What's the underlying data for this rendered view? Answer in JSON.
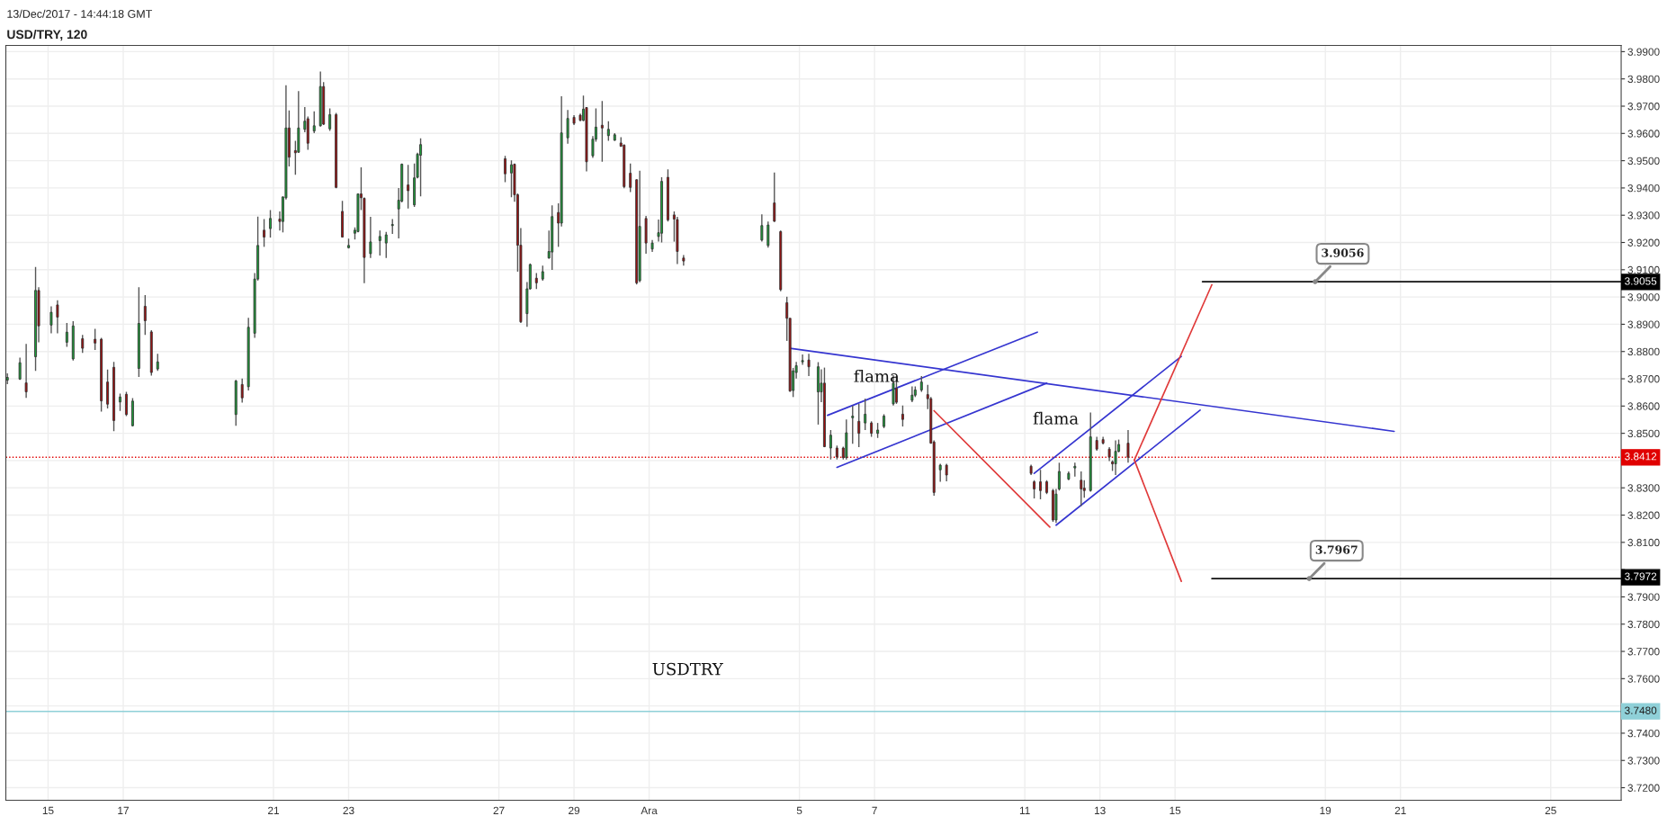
{
  "chart_data": {
    "type": "candlestick",
    "title": "USD/TRY, 120",
    "xlim": [
      "2017-11-13T21:00",
      "2017-12-26T21:00"
    ],
    "ylim": [
      3.7154,
      3.9923
    ],
    "grid": true,
    "xticks": [
      {
        "value": "2017-11-15",
        "label": "15"
      },
      {
        "value": "2017-11-17",
        "label": "17"
      },
      {
        "value": "2017-11-21",
        "label": "21"
      },
      {
        "value": "2017-11-23",
        "label": "23"
      },
      {
        "value": "2017-11-27",
        "label": "27"
      },
      {
        "value": "2017-11-29",
        "label": "29"
      },
      {
        "value": "2017-12-01",
        "label": "Ara"
      },
      {
        "value": "2017-12-05",
        "label": "5"
      },
      {
        "value": "2017-12-07",
        "label": "7"
      },
      {
        "value": "2017-12-11",
        "label": "11"
      },
      {
        "value": "2017-12-13",
        "label": "13"
      },
      {
        "value": "2017-12-15",
        "label": "15"
      },
      {
        "value": "2017-12-19",
        "label": "19"
      },
      {
        "value": "2017-12-21",
        "label": "21"
      },
      {
        "value": "2017-12-25",
        "label": "25"
      }
    ],
    "yticks": [
      {
        "value": 3.72,
        "label": "3.7200"
      },
      {
        "value": 3.73,
        "label": "3.7300"
      },
      {
        "value": 3.74,
        "label": "3.7400"
      },
      {
        "value": 3.75,
        "label": null
      },
      {
        "value": 3.76,
        "label": "3.7600"
      },
      {
        "value": 3.77,
        "label": "3.7700"
      },
      {
        "value": 3.78,
        "label": "3.7800"
      },
      {
        "value": 3.79,
        "label": "3.7900"
      },
      {
        "value": 3.8,
        "label": null
      },
      {
        "value": 3.81,
        "label": "3.8100"
      },
      {
        "value": 3.82,
        "label": "3.8200"
      },
      {
        "value": 3.83,
        "label": "3.8300"
      },
      {
        "value": 3.84,
        "label": null
      },
      {
        "value": 3.85,
        "label": "3.8500"
      },
      {
        "value": 3.86,
        "label": "3.8600"
      },
      {
        "value": 3.87,
        "label": "3.8700"
      },
      {
        "value": 3.88,
        "label": "3.8800"
      },
      {
        "value": 3.89,
        "label": "3.8900"
      },
      {
        "value": 3.9,
        "label": "3.9000"
      },
      {
        "value": 3.91,
        "label": "3.9100"
      },
      {
        "value": 3.92,
        "label": "3.9200"
      },
      {
        "value": 3.93,
        "label": "3.9300"
      },
      {
        "value": 3.94,
        "label": "3.9400"
      },
      {
        "value": 3.95,
        "label": "3.9500"
      },
      {
        "value": 3.96,
        "label": "3.9600"
      },
      {
        "value": 3.97,
        "label": "3.9700"
      },
      {
        "value": 3.98,
        "label": "3.9800"
      },
      {
        "value": 3.99,
        "label": "3.9900"
      }
    ],
    "ref_lines": [
      {
        "axis": "y",
        "value": 3.8412,
        "label": "3.8412",
        "color": "#e00000",
        "line_style": "dotted"
      },
      {
        "axis": "y",
        "value": 3.748,
        "label": "3.7480",
        "color": "#8fd0d8",
        "line_style": "solid"
      }
    ],
    "annotations": [
      "13/Dec/2017 - 14:44:18 GMT",
      "flama",
      "flama",
      "USDTRY",
      {
        "text": "3.9055",
        "x": "2017-12-26T21:00",
        "y": 3.9055
      },
      {
        "text": "3.7972",
        "x": "2017-12-26T21:00",
        "y": 3.7972
      }
    ],
    "series": [
      {
        "type": "line",
        "color": "#3535d0",
        "x": [
          "2017-12-04T18:00",
          "2017-12-20T20:00"
        ],
        "values": [
          3.8812,
          3.8507
        ]
      },
      {
        "type": "line",
        "color": "#3535d0",
        "x": [
          "2017-12-05T18:00",
          "2017-12-11T08:00"
        ],
        "values": [
          3.8566,
          3.8871
        ]
      },
      {
        "type": "line",
        "color": "#3535d0",
        "x": [
          "2017-12-06T00:00",
          "2017-12-11T14:00"
        ],
        "values": [
          3.8375,
          3.8684
        ]
      },
      {
        "type": "line",
        "color": "#3535d0",
        "x": [
          "2017-12-11T06:00",
          "2017-12-15T04:00"
        ],
        "values": [
          3.8353,
          3.8782
        ]
      },
      {
        "type": "line",
        "color": "#3535d0",
        "x": [
          "2017-12-11T20:00",
          "2017-12-15T16:00"
        ],
        "values": [
          3.8163,
          3.8585
        ]
      },
      {
        "type": "line",
        "color": "#e03a3a",
        "x": [
          "2017-12-08T14:00",
          "2017-12-11T16:00"
        ],
        "values": [
          3.8583,
          3.8156
        ]
      },
      {
        "type": "line",
        "color": "#e03a3a",
        "x": [
          "2017-12-13T22:00",
          "2017-12-15T23:30"
        ],
        "values": [
          3.8402,
          3.9045
        ]
      },
      {
        "type": "line",
        "color": "#e03a3a",
        "x": [
          "2017-12-13T22:00",
          "2017-12-15T04:00"
        ],
        "values": [
          3.8402,
          3.7957
        ]
      },
      {
        "type": "line",
        "color": "#111111",
        "x": [
          "2017-12-15T17:30",
          "2017-12-18T17:30",
          "2017-12-26T21:00"
        ],
        "values": [
          3.9056,
          3.9056,
          3.9056
        ],
        "value_labels": [
          null,
          "3.9056",
          null
        ]
      },
      {
        "type": "line",
        "color": "#111111",
        "x": [
          "2017-12-15T23:30",
          "2017-12-18T13:40",
          "2017-12-26T21:00"
        ],
        "values": [
          3.7967,
          3.7967,
          3.7967
        ],
        "value_labels": [
          null,
          "3.7967",
          null
        ]
      },
      {
        "color": "#1e9e3a",
        "x": [
          "2017-11-13T22:00",
          "2017-11-14T06:00",
          "2017-11-14T16:00",
          "2017-11-15T02:00",
          "2017-11-15T12:00",
          "2017-11-15T16:00",
          "2017-11-16T22:00",
          "2017-11-17T06:00",
          "2017-11-17T10:00",
          "2017-11-17T22:00",
          "2017-11-20T00:00",
          "2017-11-20T08:00",
          "2017-11-20T12:00",
          "2017-11-20T14:00",
          "2017-11-20T22:00",
          "2017-11-21T06:00",
          "2017-11-21T08:00",
          "2017-11-21T16:00",
          "2017-11-21T20:00",
          "2017-11-22T02:00",
          "2017-11-22T06:00",
          "2017-11-22T12:00",
          "2017-11-23T00:00",
          "2017-11-23T04:00",
          "2017-11-23T06:00",
          "2017-11-23T14:00",
          "2017-11-23T20:00",
          "2017-11-24T00:00",
          "2017-11-24T04:00",
          "2017-11-24T08:00",
          "2017-11-24T10:00",
          "2017-11-24T18:00",
          "2017-11-24T20:00",
          "2017-11-24T22:00",
          "2017-11-27T08:00",
          "2017-11-27T18:00",
          "2017-11-27T20:00",
          "2017-11-28T04:00",
          "2017-11-28T08:00",
          "2017-11-28T10:00",
          "2017-11-28T16:00",
          "2017-11-28T20:00",
          "2017-11-29T06:00",
          "2017-11-29T12:00",
          "2017-11-29T14:00",
          "2017-11-29T22:00",
          "2017-11-30T02:00",
          "2017-11-30T18:00",
          "2017-12-01T02:00",
          "2017-12-01T06:00",
          "2017-12-01T08:00",
          "2017-12-04T00:00",
          "2017-12-04T04:00",
          "2017-12-04T20:00",
          "2017-12-04T22:00",
          "2017-12-05T02:00",
          "2017-12-05T12:00",
          "2017-12-05T14:00",
          "2017-12-05T20:00",
          "2017-12-06T06:00",
          "2017-12-06T10:00",
          "2017-12-06T18:00",
          "2017-12-07T02:00",
          "2017-12-07T06:00",
          "2017-12-07T12:00",
          "2017-12-08T00:00",
          "2017-12-08T02:00",
          "2017-12-08T06:00",
          "2017-12-08T18:00",
          "2017-12-11T20:00",
          "2017-12-11T22:00",
          "2017-12-12T04:00",
          "2017-12-12T08:00",
          "2017-12-12T18:00",
          "2017-12-13T10:00",
          "2017-12-13T12:00"
        ],
        "ohlc": [
          [
            3.8695,
            3.872,
            3.868,
            3.8705
          ],
          [
            3.8699,
            3.8778,
            3.8696,
            3.8759
          ],
          [
            3.8781,
            3.911,
            3.8729,
            3.9024
          ],
          [
            3.8897,
            3.8966,
            3.8867,
            3.8944
          ],
          [
            3.8834,
            3.8905,
            3.8817,
            3.8871
          ],
          [
            3.8773,
            3.8911,
            3.8767,
            3.8894
          ],
          [
            3.8615,
            3.8646,
            3.8582,
            3.8633
          ],
          [
            3.8528,
            3.8629,
            3.8525,
            3.8618
          ],
          [
            3.8738,
            3.9036,
            3.8707,
            3.8903
          ],
          [
            3.8736,
            3.8792,
            3.8729,
            3.8762
          ],
          [
            3.8569,
            3.8696,
            3.8528,
            3.8692
          ],
          [
            3.8671,
            3.8924,
            3.8657,
            3.8889
          ],
          [
            3.8867,
            3.9088,
            3.885,
            3.9066
          ],
          [
            3.9066,
            3.9295,
            3.906,
            3.9189
          ],
          [
            3.9251,
            3.9319,
            3.9218,
            3.9288
          ],
          [
            3.9277,
            3.9369,
            3.9237,
            3.9367
          ],
          [
            3.9364,
            3.9777,
            3.9358,
            3.962
          ],
          [
            3.9531,
            3.9755,
            3.9529,
            3.962
          ],
          [
            3.9615,
            3.9697,
            3.9604,
            3.9645
          ],
          [
            3.9609,
            3.9681,
            3.9601,
            3.9628
          ],
          [
            3.9628,
            3.9827,
            3.9625,
            3.9772
          ],
          [
            3.9617,
            3.9692,
            3.9609,
            3.9669
          ],
          [
            3.9181,
            3.9214,
            3.9178,
            3.9189
          ],
          [
            3.9234,
            3.9255,
            3.9211,
            3.9245
          ],
          [
            3.924,
            3.938,
            3.9237,
            3.9378
          ],
          [
            3.9159,
            3.9294,
            3.9143,
            3.9202
          ],
          [
            3.9207,
            3.9244,
            3.9152,
            3.9222
          ],
          [
            3.9198,
            3.9239,
            3.9143,
            3.9228
          ],
          [
            3.9262,
            3.9286,
            3.9231,
            3.9266
          ],
          [
            3.9323,
            3.94,
            3.9215,
            3.9355
          ],
          [
            3.9352,
            3.949,
            3.9347,
            3.9487
          ],
          [
            3.9338,
            3.949,
            3.933,
            3.9437
          ],
          [
            3.9439,
            3.9529,
            3.9435,
            3.9524
          ],
          [
            3.952,
            3.9582,
            3.9369,
            3.9559
          ],
          [
            3.9455,
            3.9501,
            3.9366,
            3.9485
          ],
          [
            3.8939,
            3.9055,
            3.8891,
            3.903
          ],
          [
            3.903,
            3.9123,
            3.9027,
            3.9119
          ],
          [
            3.9066,
            3.9115,
            3.906,
            3.9093
          ],
          [
            3.9143,
            3.9244,
            3.9141,
            3.9167
          ],
          [
            3.9165,
            3.9336,
            3.9099,
            3.9295
          ],
          [
            3.9271,
            3.9736,
            3.9259,
            3.9602
          ],
          [
            3.9584,
            3.9686,
            3.9562,
            3.9655
          ],
          [
            3.9648,
            3.9739,
            3.9645,
            3.9689
          ],
          [
            3.9518,
            3.959,
            3.951,
            3.9579
          ],
          [
            3.9579,
            3.9692,
            3.957,
            3.9623
          ],
          [
            3.9592,
            3.9645,
            3.9573,
            3.9615
          ],
          [
            3.9575,
            3.9601,
            3.9573,
            3.9595
          ],
          [
            3.906,
            3.9463,
            3.9054,
            3.9259
          ],
          [
            3.9176,
            3.9209,
            3.9165,
            3.9198
          ],
          [
            3.9222,
            3.9284,
            3.9203,
            3.9236
          ],
          [
            3.9234,
            3.9439,
            3.92,
            3.9424
          ],
          [
            3.9209,
            3.9303,
            3.9203,
            3.9262
          ],
          [
            3.9189,
            3.9277,
            3.9181,
            3.9264
          ],
          [
            3.8657,
            3.874,
            3.8633,
            3.8729
          ],
          [
            3.8723,
            3.8762,
            3.8701,
            3.8748
          ],
          [
            3.8762,
            3.8789,
            3.8751,
            3.8767
          ],
          [
            3.8652,
            3.8761,
            3.8532,
            3.8744
          ],
          [
            3.8652,
            3.8735,
            3.8614,
            3.8684
          ],
          [
            3.8446,
            3.8512,
            3.8404,
            3.8493
          ],
          [
            3.8411,
            3.8551,
            3.8404,
            3.8502
          ],
          [
            3.8557,
            3.8602,
            3.8462,
            3.8563
          ],
          [
            3.8538,
            3.8627,
            3.8512,
            3.857
          ],
          [
            3.85,
            3.8538,
            3.8483,
            3.8512
          ],
          [
            3.8525,
            3.857,
            3.8519,
            3.8563
          ],
          [
            3.8608,
            3.8713,
            3.8602,
            3.8684
          ],
          [
            3.8621,
            3.8672,
            3.8614,
            3.864
          ],
          [
            3.864,
            3.8672,
            3.8633,
            3.8659
          ],
          [
            3.8659,
            3.871,
            3.8652,
            3.8688
          ],
          [
            3.8366,
            3.8388,
            3.8322,
            3.8383
          ],
          [
            3.8182,
            3.8296,
            3.8171,
            3.8277
          ],
          [
            3.8296,
            3.8392,
            3.829,
            3.836
          ],
          [
            3.8332,
            3.836,
            3.8328,
            3.8353
          ],
          [
            3.8373,
            3.8392,
            3.8341,
            3.8379
          ],
          [
            3.829,
            3.8576,
            3.8286,
            3.8487
          ],
          [
            3.8388,
            3.8474,
            3.8347,
            3.8434
          ],
          [
            3.8434,
            3.8477,
            3.843,
            3.8459
          ]
        ]
      },
      {
        "color": "#9e1010",
        "x": [
          "2017-11-14T10:00",
          "2017-11-14T18:00",
          "2017-11-15T06:00",
          "2017-11-15T22:00",
          "2017-11-16T06:00",
          "2017-11-16T10:00",
          "2017-11-16T14:00",
          "2017-11-16T18:00",
          "2017-11-17T02:00",
          "2017-11-17T14:00",
          "2017-11-17T18:00",
          "2017-11-20T04:00",
          "2017-11-20T18:00",
          "2017-11-21T04:00",
          "2017-11-21T10:00",
          "2017-11-21T14:00",
          "2017-11-21T22:00",
          "2017-11-22T08:00",
          "2017-11-22T16:00",
          "2017-11-22T20:00",
          "2017-11-23T08:00",
          "2017-11-23T10:00",
          "2017-11-24T14:00",
          "2017-11-27T04:00",
          "2017-11-27T10:00",
          "2017-11-27T12:00",
          "2017-11-27T14:00",
          "2017-11-28T00:00",
          "2017-11-28T14:00",
          "2017-11-29T00:00",
          "2017-11-29T04:00",
          "2017-11-29T08:00",
          "2017-11-29T18:00",
          "2017-11-30T06:00",
          "2017-11-30T08:00",
          "2017-11-30T12:00",
          "2017-11-30T16:00",
          "2017-11-30T22:00",
          "2017-12-01T12:00",
          "2017-12-01T16:00",
          "2017-12-01T18:00",
          "2017-12-01T22:00",
          "2017-12-04T08:00",
          "2017-12-04T12:00",
          "2017-12-04T16:00",
          "2017-12-04T18:00",
          "2017-12-05T06:00",
          "2017-12-05T16:00",
          "2017-12-06T00:00",
          "2017-12-06T04:00",
          "2017-12-06T14:00",
          "2017-12-06T22:00",
          "2017-12-07T14:00",
          "2017-12-07T18:00",
          "2017-12-08T10:00",
          "2017-12-08T12:00",
          "2017-12-08T14:00",
          "2017-12-08T22:00",
          "2017-12-11T04:00",
          "2017-12-11T06:00",
          "2017-12-11T10:00",
          "2017-12-11T14:00",
          "2017-12-11T18:00",
          "2017-12-12T12:00",
          "2017-12-12T14:00",
          "2017-12-12T22:00",
          "2017-12-13T02:00",
          "2017-12-13T06:00",
          "2017-12-13T08:00",
          "2017-12-13T18:00"
        ],
        "ohlc": [
          [
            3.8685,
            3.8828,
            3.863,
            3.8652
          ],
          [
            3.9024,
            3.9036,
            3.8834,
            3.8894
          ],
          [
            3.8971,
            3.8988,
            3.8867,
            3.8926
          ],
          [
            3.8847,
            3.8861,
            3.8795,
            3.8812
          ],
          [
            3.8845,
            3.8883,
            3.8806,
            3.8831
          ],
          [
            3.8845,
            3.885,
            3.858,
            3.8619
          ],
          [
            3.8688,
            3.8734,
            3.8591,
            3.8607
          ],
          [
            3.8742,
            3.8762,
            3.8508,
            3.8547
          ],
          [
            3.8643,
            3.8652,
            3.8563,
            3.8569
          ],
          [
            3.8966,
            3.9007,
            3.8861,
            3.8913
          ],
          [
            3.8872,
            3.8878,
            3.8712,
            3.8723
          ],
          [
            3.8679,
            3.8701,
            3.8613,
            3.863
          ],
          [
            3.9245,
            3.9286,
            3.9184,
            3.922
          ],
          [
            3.9286,
            3.9314,
            3.9244,
            3.9277
          ],
          [
            3.962,
            3.9684,
            3.9479,
            3.9513
          ],
          [
            3.9537,
            3.9573,
            3.9448,
            3.9529
          ],
          [
            3.9654,
            3.9662,
            3.954,
            3.9564
          ],
          [
            3.9772,
            3.9788,
            3.9631,
            3.9634
          ],
          [
            3.9669,
            3.9675,
            3.9399,
            3.9402
          ],
          [
            3.9314,
            3.9353,
            3.9218,
            3.922
          ],
          [
            3.9378,
            3.9476,
            3.9319,
            3.9364
          ],
          [
            3.9362,
            3.9365,
            3.9051,
            3.9145
          ],
          [
            3.9411,
            3.9485,
            3.9325,
            3.939
          ],
          [
            3.9507,
            3.9518,
            3.9421,
            3.9452
          ],
          [
            3.9487,
            3.949,
            3.9349,
            3.9375
          ],
          [
            3.9375,
            3.938,
            3.9093,
            3.919
          ],
          [
            3.919,
            3.9253,
            3.8905,
            3.8909
          ],
          [
            3.9069,
            3.9088,
            3.9029,
            3.9052
          ],
          [
            3.931,
            3.9344,
            3.9184,
            3.9271
          ],
          [
            3.9659,
            3.9667,
            3.9631,
            3.9637
          ],
          [
            3.9667,
            3.9673,
            3.9645,
            3.9648
          ],
          [
            3.9695,
            3.9697,
            3.9461,
            3.9496
          ],
          [
            3.963,
            3.9719,
            3.9496,
            3.962
          ],
          [
            3.9565,
            3.9586,
            3.9551,
            3.9553
          ],
          [
            3.9557,
            3.956,
            3.9399,
            3.9405
          ],
          [
            3.9454,
            3.949,
            3.9385,
            3.9402
          ],
          [
            3.943,
            3.9432,
            3.9046,
            3.9052
          ],
          [
            3.9288,
            3.9297,
            3.9159,
            3.9198
          ],
          [
            3.9439,
            3.9468,
            3.9277,
            3.9283
          ],
          [
            3.9301,
            3.9314,
            3.9203,
            3.9286
          ],
          [
            3.9284,
            3.9294,
            3.9121,
            3.9167
          ],
          [
            3.9143,
            3.9154,
            3.9115,
            3.9132
          ],
          [
            3.9345,
            3.9457,
            3.9275,
            3.9278
          ],
          [
            3.924,
            3.9244,
            3.9021,
            3.9027
          ],
          [
            3.8979,
            3.9001,
            3.8839,
            3.8922
          ],
          [
            3.8922,
            3.8922,
            3.8652,
            3.8655
          ],
          [
            3.8769,
            3.8792,
            3.871,
            3.8744
          ],
          [
            3.8684,
            3.8741,
            3.8449,
            3.8451
          ],
          [
            3.8446,
            3.8455,
            3.8404,
            3.8413
          ],
          [
            3.8446,
            3.8451,
            3.8404,
            3.8411
          ],
          [
            3.8544,
            3.8608,
            3.8449,
            3.85
          ],
          [
            3.8538,
            3.8544,
            3.8487,
            3.85
          ],
          [
            3.8665,
            3.871,
            3.8608,
            3.8614
          ],
          [
            3.857,
            3.8602,
            3.8525,
            3.8551
          ],
          [
            3.8642,
            3.8678,
            3.8589,
            3.8627
          ],
          [
            3.8627,
            3.8633,
            3.8462,
            3.8464
          ],
          [
            3.8468,
            3.8474,
            3.8271,
            3.8283
          ],
          [
            3.8383,
            3.8388,
            3.8324,
            3.8347
          ],
          [
            3.8379,
            3.8385,
            3.8347,
            3.8353
          ],
          [
            3.8322,
            3.8328,
            3.8261,
            3.8296
          ],
          [
            3.8322,
            3.8366,
            3.8258,
            3.829
          ],
          [
            3.8322,
            3.8328,
            3.8277,
            3.8283
          ],
          [
            3.829,
            3.8296,
            3.8175,
            3.8182
          ],
          [
            3.8328,
            3.836,
            3.8233,
            3.8296
          ],
          [
            3.8299,
            3.8328,
            3.8264,
            3.829
          ],
          [
            3.8474,
            3.8487,
            3.8436,
            3.8442
          ],
          [
            3.8477,
            3.8487,
            3.8459,
            3.8464
          ],
          [
            3.8442,
            3.8449,
            3.8398,
            3.8413
          ],
          [
            3.8395,
            3.8401,
            3.8362,
            3.8388
          ],
          [
            3.8464,
            3.8512,
            3.8392,
            3.8412
          ]
        ]
      }
    ]
  }
}
